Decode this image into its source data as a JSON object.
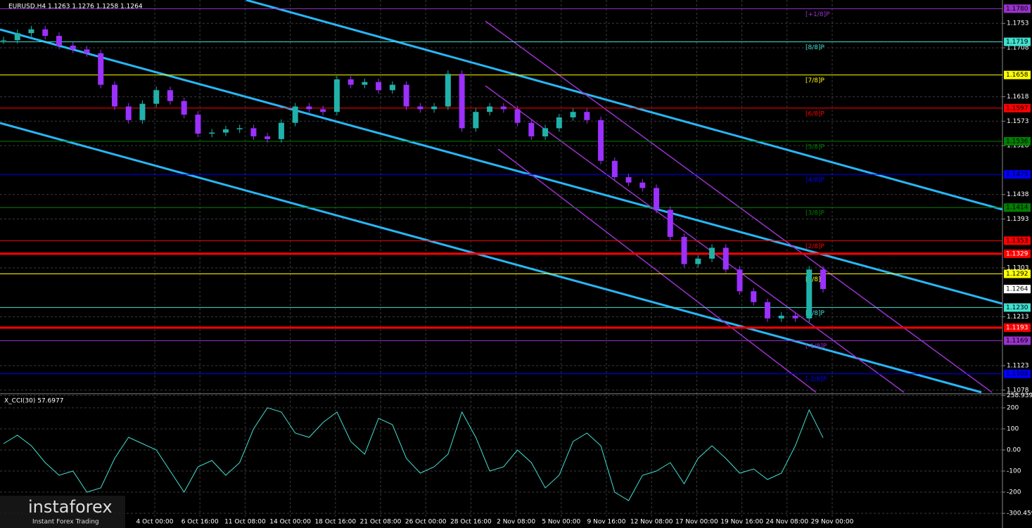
{
  "header": {
    "symbol": "EURUSD,H4",
    "ohlc": "1.1263 1.1276 1.1258 1.1264"
  },
  "time_labels": [
    "4 Oct 00:00",
    "6 Oct 16:00",
    "11 Oct 08:00",
    "14 Oct 00:00",
    "18 Oct 16:00",
    "21 Oct 08:00",
    "26 Oct 00:00",
    "28 Oct 16:00",
    "2 Nov 08:00",
    "5 Nov 00:00",
    "9 Nov 16:00",
    "12 Nov 08:00",
    "17 Nov 00:00",
    "19 Nov 16:00",
    "24 Nov 08:00",
    "29 Nov 00:00"
  ],
  "watermark": {
    "brand": "instaforex",
    "tagline": "Instant Forex Trading"
  },
  "chart_data": [
    {
      "type": "candles",
      "ylim": [
        1.1074,
        1.1796
      ],
      "yticks": [
        1.1753,
        1.1708,
        1.1618,
        1.1573,
        1.1528,
        1.1438,
        1.1393,
        1.1303,
        1.1213,
        1.1123,
        1.1078
      ],
      "current": 1.1264,
      "levels": [
        {
          "price": {
            "value": 1.178,
            "label": "1.1780"
          },
          "tag": "[+1/8]P",
          "color": "#9932cc"
        },
        {
          "price": 1.1719,
          "tag": "[8/8]P",
          "color": "#40e0d0"
        },
        {
          "price": 1.1658,
          "tag": "[7/8]P",
          "color": "#ffff00"
        },
        {
          "price": 1.1597,
          "tag": "[6/8]P",
          "color": "#ff0000"
        },
        {
          "price": 1.1536,
          "tag": "[5/8]P",
          "color": "#008000"
        },
        {
          "price": 1.1475,
          "tag": "[4/8]P",
          "color": "#0000ff"
        },
        {
          "price": 1.1414,
          "tag": "[3/8]P",
          "color": "#008000"
        },
        {
          "price": 1.1353,
          "tag": "[2/8]P",
          "color": "#ff0000"
        },
        {
          "price": 1.1292,
          "tag": "[1/8]P",
          "color": "#ffff00"
        },
        {
          "price": {
            "value": 1.123,
            "label": "1.1230"
          },
          "tag": "[0/8]P",
          "color": "#40e0d0"
        },
        {
          "price": 1.1169,
          "tag": "[-1/8]P",
          "color": "#9932cc"
        },
        {
          "price": 1.1108,
          "tag": "[-2/8]P",
          "color": "#0000ff"
        }
      ],
      "lines": [
        {
          "price": 1.1329,
          "color": "#ff0000"
        },
        {
          "price": 1.1193,
          "color": "#ff0000"
        }
      ],
      "up_color": "#20b2aa",
      "down_color": "#9b30ff",
      "values": [
        1.1722,
        1.1735,
        1.1742,
        1.173,
        1.1712,
        1.1705,
        1.1698,
        1.164,
        1.16,
        1.1575,
        1.1605,
        1.163,
        1.161,
        1.1585,
        1.155,
        1.1552,
        1.1558,
        1.156,
        1.1545,
        1.154,
        1.157,
        1.16,
        1.1595,
        1.159,
        1.165,
        1.164,
        1.1645,
        1.163,
        1.164,
        1.16,
        1.1595,
        1.16,
        1.166,
        1.156,
        1.159,
        1.16,
        1.1595,
        1.157,
        1.1545,
        1.156,
        1.158,
        1.159,
        1.1575,
        1.15,
        1.147,
        1.146,
        1.145,
        1.141,
        1.136,
        1.131,
        1.132,
        1.134,
        1.13,
        1.126,
        1.124,
        1.121,
        1.1215,
        1.121,
        1.13,
        1.1264
      ]
    },
    {
      "type": "line",
      "title": "X_CCI(30) 57.6977",
      "color": "#40e0d0",
      "ylim": [
        -350,
        260
      ],
      "yticks": [
        258.9392,
        200,
        100,
        {
          "value": 0,
          "label": "0.00"
        },
        -100,
        -200,
        -300.459
      ],
      "values": [
        30,
        70,
        20,
        -60,
        -120,
        -100,
        -200,
        -180,
        -40,
        60,
        30,
        0,
        -100,
        -200,
        -80,
        -50,
        -120,
        -60,
        100,
        200,
        180,
        80,
        60,
        130,
        180,
        40,
        -20,
        150,
        120,
        -40,
        -110,
        -80,
        -20,
        180,
        60,
        -100,
        -80,
        0,
        -60,
        -180,
        -120,
        40,
        80,
        20,
        -200,
        -240,
        -120,
        -100,
        -60,
        -160,
        -40,
        20,
        -40,
        -110,
        -90,
        -140,
        -110,
        20,
        190,
        57.6977
      ]
    }
  ]
}
